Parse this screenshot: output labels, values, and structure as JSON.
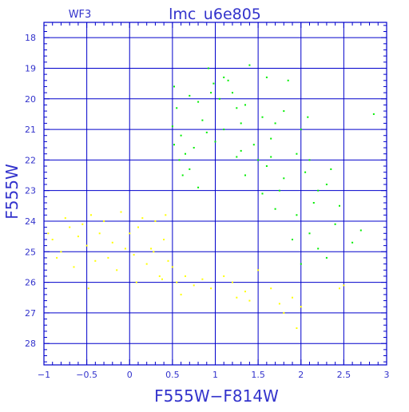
{
  "chart_data": {
    "type": "scatter",
    "title": "lmc_u6e805",
    "subtitle": "WF3",
    "xlabel": "F555W−F814W",
    "ylabel": "F555W",
    "xlim": [
      -1,
      3
    ],
    "ylim": [
      28.7,
      17.5
    ],
    "y_inverted": true,
    "grid": true,
    "x_ticks": [
      -1,
      -0.5,
      0,
      0.5,
      1,
      1.5,
      2,
      2.5,
      3
    ],
    "x_tick_labels": [
      "−1",
      "−0.5",
      "0",
      "0.5",
      "1",
      "1.5",
      "2",
      "2.5",
      "3"
    ],
    "y_ticks": [
      18,
      19,
      20,
      21,
      22,
      23,
      24,
      25,
      26,
      27,
      28
    ],
    "y_tick_labels": [
      "18",
      "19",
      "20",
      "21",
      "22",
      "23",
      "24",
      "25",
      "26",
      "27",
      "28"
    ],
    "colors": {
      "frame": "#0000cc",
      "grid": "#0000cc",
      "text": "#3333cc",
      "series_green": "#00ee00",
      "series_yellow": "#ffff00"
    },
    "series": [
      {
        "color": "#00ee00",
        "points": [
          [
            0.52,
            19.6
          ],
          [
            0.55,
            20.3
          ],
          [
            0.5,
            20.9
          ],
          [
            0.6,
            21.2
          ],
          [
            0.52,
            21.5
          ],
          [
            0.92,
            19.0
          ],
          [
            1.1,
            19.3
          ],
          [
            1.15,
            19.4
          ],
          [
            1.4,
            18.9
          ],
          [
            1.6,
            19.3
          ],
          [
            1.85,
            19.4
          ],
          [
            1.7,
            20.8
          ],
          [
            1.8,
            20.4
          ],
          [
            1.55,
            20.6
          ],
          [
            1.35,
            20.2
          ],
          [
            0.95,
            19.8
          ],
          [
            1.05,
            20.0
          ],
          [
            1.25,
            20.3
          ],
          [
            2.85,
            20.5
          ],
          [
            1.2,
            19.8
          ],
          [
            0.7,
            19.9
          ],
          [
            0.8,
            20.1
          ],
          [
            1.45,
            21.5
          ],
          [
            1.65,
            21.3
          ],
          [
            1.95,
            21.8
          ],
          [
            2.1,
            22.0
          ],
          [
            2.3,
            22.8
          ],
          [
            2.15,
            23.4
          ],
          [
            2.4,
            24.1
          ],
          [
            2.7,
            24.3
          ],
          [
            2.2,
            24.9
          ],
          [
            2.3,
            25.2
          ],
          [
            2.0,
            25.4
          ],
          [
            1.9,
            24.6
          ],
          [
            1.75,
            23.0
          ],
          [
            1.6,
            22.2
          ],
          [
            1.8,
            22.6
          ],
          [
            2.05,
            22.4
          ],
          [
            1.7,
            23.6
          ],
          [
            0.65,
            21.8
          ],
          [
            0.7,
            22.3
          ],
          [
            0.75,
            21.6
          ],
          [
            0.9,
            21.1
          ],
          [
            0.85,
            20.7
          ],
          [
            1.0,
            21.4
          ],
          [
            1.1,
            21.0
          ],
          [
            1.3,
            21.7
          ],
          [
            1.5,
            22.0
          ],
          [
            2.2,
            23.0
          ],
          [
            2.45,
            23.5
          ],
          [
            2.1,
            24.4
          ],
          [
            1.95,
            23.8
          ],
          [
            0.58,
            22.0
          ],
          [
            0.62,
            22.5
          ],
          [
            0.8,
            22.9
          ],
          [
            1.35,
            22.5
          ],
          [
            1.55,
            23.1
          ],
          [
            1.3,
            20.8
          ],
          [
            2.6,
            24.7
          ],
          [
            1.25,
            21.9
          ],
          [
            2.0,
            21.0
          ],
          [
            0.98,
            19.5
          ],
          [
            2.08,
            20.6
          ],
          [
            2.35,
            22.3
          ],
          [
            1.65,
            21.9
          ]
        ]
      },
      {
        "color": "#ffff00",
        "points": [
          [
            -0.9,
            24.6
          ],
          [
            -0.8,
            25.0
          ],
          [
            -0.7,
            24.2
          ],
          [
            -0.6,
            24.5
          ],
          [
            -0.5,
            24.8
          ],
          [
            -0.45,
            23.8
          ],
          [
            -0.4,
            25.3
          ],
          [
            -0.3,
            24.0
          ],
          [
            -0.2,
            24.7
          ],
          [
            -0.15,
            25.6
          ],
          [
            -0.1,
            23.7
          ],
          [
            0.0,
            24.4
          ],
          [
            0.05,
            25.1
          ],
          [
            0.1,
            24.2
          ],
          [
            0.2,
            25.4
          ],
          [
            0.25,
            24.9
          ],
          [
            0.3,
            24.0
          ],
          [
            0.35,
            25.8
          ],
          [
            0.4,
            24.6
          ],
          [
            0.45,
            25.3
          ],
          [
            -0.85,
            25.2
          ],
          [
            -0.65,
            25.5
          ],
          [
            -0.55,
            24.1
          ],
          [
            -0.35,
            24.4
          ],
          [
            -0.25,
            25.2
          ],
          [
            -0.05,
            24.9
          ],
          [
            0.15,
            23.9
          ],
          [
            0.28,
            25.0
          ],
          [
            0.38,
            25.9
          ],
          [
            0.5,
            25.5
          ],
          [
            0.55,
            26.0
          ],
          [
            0.65,
            25.8
          ],
          [
            0.75,
            26.1
          ],
          [
            0.85,
            25.9
          ],
          [
            0.95,
            26.2
          ],
          [
            1.1,
            25.8
          ],
          [
            1.2,
            26.0
          ],
          [
            1.35,
            26.3
          ],
          [
            1.5,
            25.6
          ],
          [
            1.65,
            26.2
          ],
          [
            1.9,
            26.5
          ],
          [
            2.0,
            26.8
          ],
          [
            2.45,
            26.2
          ],
          [
            1.8,
            27.0
          ],
          [
            1.4,
            26.6
          ],
          [
            -0.75,
            23.9
          ],
          [
            -0.95,
            24.4
          ],
          [
            0.42,
            23.8
          ],
          [
            -0.48,
            26.2
          ],
          [
            0.08,
            26.0
          ],
          [
            1.95,
            27.5
          ],
          [
            2.5,
            26.1
          ],
          [
            1.25,
            26.5
          ],
          [
            0.6,
            26.4
          ],
          [
            1.75,
            26.7
          ]
        ]
      }
    ]
  }
}
